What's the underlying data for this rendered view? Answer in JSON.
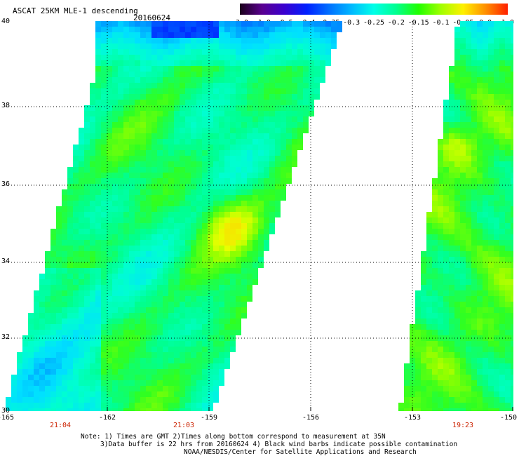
{
  "header": {
    "title": "ASCAT 25KM MLE-1 descending",
    "date": "20160624"
  },
  "colorbar": {
    "labels": [
      "-3.0",
      "-1.0",
      "-0.5",
      "-0.4",
      "-0.35",
      "-0.3",
      "-0.25",
      "-0.2",
      "-0.15",
      "-0.1",
      "-0.05",
      "0.0",
      "1.0"
    ],
    "colors": [
      "#1a001a",
      "#5a0090",
      "#3a00d0",
      "#0020ff",
      "#0070ff",
      "#00b8ff",
      "#00ffe8",
      "#00ff90",
      "#20ff00",
      "#a0ff00",
      "#fff000",
      "#ff9000",
      "#ff2000"
    ]
  },
  "axes": {
    "lat_ticks": [
      "40",
      "38",
      "36",
      "34",
      "32",
      "30"
    ],
    "lon_ticks": [
      "-165",
      "-162",
      "-159",
      "-156",
      "-153",
      "-150"
    ],
    "lat_range": [
      30,
      40
    ],
    "lon_range": [
      -165,
      -150
    ]
  },
  "times": [
    "21:04",
    "21:03",
    "19:23"
  ],
  "notes": {
    "line1": "Note: 1) Times are GMT 2)Times along bottom correspond to measurement at 35N",
    "line2": "3)Data buffer is 22 hrs from 20160624 4) Black wind barbs indicate possible contamination",
    "line3": "NOAA/NESDIS/Center for Satellite Applications and Research"
  }
}
